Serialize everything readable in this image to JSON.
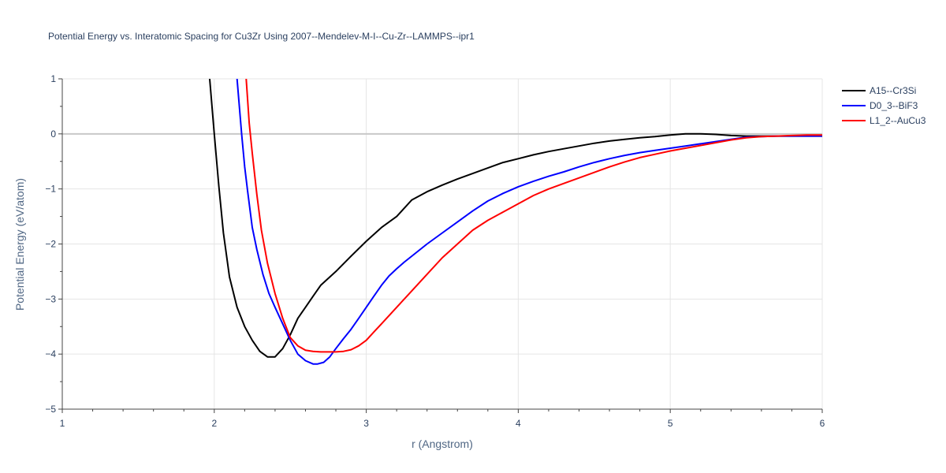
{
  "chart_data": {
    "type": "line",
    "title": "Potential Energy vs. Interatomic Spacing for Cu3Zr Using 2007--Mendelev-M-I--Cu-Zr--LAMMPS--ipr1",
    "xlabel": "r (Angstrom)",
    "ylabel": "Potential Energy (eV/atom)",
    "xlim": [
      1,
      6
    ],
    "ylim": [
      -5,
      1
    ],
    "xticks": [
      1,
      2,
      3,
      4,
      5,
      6
    ],
    "yticks": [
      -5,
      -4,
      -3,
      -2,
      -1,
      0,
      1
    ],
    "xtick_labels": [
      "1",
      "2",
      "3",
      "4",
      "5",
      "6"
    ],
    "ytick_labels": [
      "−5",
      "−4",
      "−3",
      "−2",
      "−1",
      "0",
      "1"
    ],
    "grid": true,
    "legend_position": "top-right",
    "series": [
      {
        "name": "A15--Cr3Si",
        "color": "#000000",
        "x": [
          1.97,
          2.0,
          2.03,
          2.06,
          2.1,
          2.15,
          2.2,
          2.25,
          2.3,
          2.35,
          2.4,
          2.45,
          2.5,
          2.55,
          2.6,
          2.65,
          2.7,
          2.8,
          2.9,
          3.0,
          3.1,
          3.2,
          3.25,
          3.3,
          3.4,
          3.5,
          3.6,
          3.7,
          3.8,
          3.9,
          4.0,
          4.1,
          4.2,
          4.3,
          4.4,
          4.5,
          4.6,
          4.7,
          4.8,
          4.9,
          5.0,
          5.1,
          5.2,
          5.3,
          5.4,
          5.5,
          5.6,
          5.7,
          5.8,
          5.9,
          6.0
        ],
        "y": [
          1.0,
          0.0,
          -0.95,
          -1.8,
          -2.6,
          -3.15,
          -3.5,
          -3.75,
          -3.95,
          -4.05,
          -4.05,
          -3.9,
          -3.65,
          -3.35,
          -3.15,
          -2.95,
          -2.75,
          -2.5,
          -2.22,
          -1.95,
          -1.7,
          -1.5,
          -1.35,
          -1.2,
          -1.05,
          -0.93,
          -0.82,
          -0.72,
          -0.62,
          -0.52,
          -0.45,
          -0.38,
          -0.32,
          -0.27,
          -0.22,
          -0.17,
          -0.13,
          -0.1,
          -0.07,
          -0.05,
          -0.02,
          0.0,
          0.0,
          -0.01,
          -0.03,
          -0.04,
          -0.04,
          -0.04,
          -0.04,
          -0.04,
          -0.04
        ]
      },
      {
        "name": "D0_3--BiF3",
        "color": "#0000ff",
        "x": [
          2.15,
          2.18,
          2.2,
          2.22,
          2.25,
          2.28,
          2.32,
          2.36,
          2.4,
          2.45,
          2.5,
          2.55,
          2.6,
          2.65,
          2.68,
          2.72,
          2.76,
          2.8,
          2.85,
          2.9,
          2.95,
          3.0,
          3.05,
          3.1,
          3.15,
          3.2,
          3.25,
          3.3,
          3.4,
          3.5,
          3.6,
          3.7,
          3.8,
          3.9,
          4.0,
          4.1,
          4.2,
          4.3,
          4.4,
          4.5,
          4.6,
          4.7,
          4.8,
          4.9,
          5.0,
          5.1,
          5.2,
          5.3,
          5.4,
          5.5,
          5.6,
          5.7,
          5.8,
          5.9,
          6.0
        ],
        "y": [
          1.0,
          0.0,
          -0.6,
          -1.05,
          -1.7,
          -2.1,
          -2.55,
          -2.9,
          -3.15,
          -3.45,
          -3.75,
          -4.0,
          -4.12,
          -4.18,
          -4.18,
          -4.15,
          -4.05,
          -3.9,
          -3.72,
          -3.55,
          -3.35,
          -3.15,
          -2.95,
          -2.75,
          -2.58,
          -2.45,
          -2.33,
          -2.22,
          -2.0,
          -1.8,
          -1.6,
          -1.4,
          -1.22,
          -1.08,
          -0.96,
          -0.86,
          -0.77,
          -0.69,
          -0.6,
          -0.52,
          -0.45,
          -0.39,
          -0.34,
          -0.3,
          -0.26,
          -0.22,
          -0.18,
          -0.14,
          -0.1,
          -0.06,
          -0.05,
          -0.04,
          -0.04,
          -0.04,
          -0.04
        ]
      },
      {
        "name": "L1_2--AuCu3",
        "color": "#ff0000",
        "x": [
          2.21,
          2.23,
          2.25,
          2.28,
          2.31,
          2.35,
          2.4,
          2.45,
          2.5,
          2.55,
          2.6,
          2.65,
          2.7,
          2.75,
          2.8,
          2.85,
          2.9,
          2.95,
          3.0,
          3.05,
          3.1,
          3.2,
          3.3,
          3.4,
          3.5,
          3.6,
          3.7,
          3.8,
          3.9,
          4.0,
          4.1,
          4.2,
          4.3,
          4.4,
          4.5,
          4.6,
          4.7,
          4.8,
          4.9,
          5.0,
          5.1,
          5.2,
          5.3,
          5.4,
          5.5,
          5.6,
          5.7,
          5.8,
          5.9,
          6.0
        ],
        "y": [
          1.0,
          0.2,
          -0.35,
          -1.1,
          -1.75,
          -2.35,
          -2.9,
          -3.35,
          -3.7,
          -3.85,
          -3.93,
          -3.95,
          -3.96,
          -3.96,
          -3.96,
          -3.95,
          -3.92,
          -3.85,
          -3.75,
          -3.6,
          -3.45,
          -3.15,
          -2.85,
          -2.55,
          -2.25,
          -2.0,
          -1.75,
          -1.57,
          -1.42,
          -1.27,
          -1.12,
          -1.0,
          -0.9,
          -0.8,
          -0.7,
          -0.6,
          -0.51,
          -0.43,
          -0.37,
          -0.31,
          -0.26,
          -0.21,
          -0.16,
          -0.11,
          -0.07,
          -0.05,
          -0.04,
          -0.03,
          -0.02,
          -0.02
        ]
      }
    ]
  }
}
